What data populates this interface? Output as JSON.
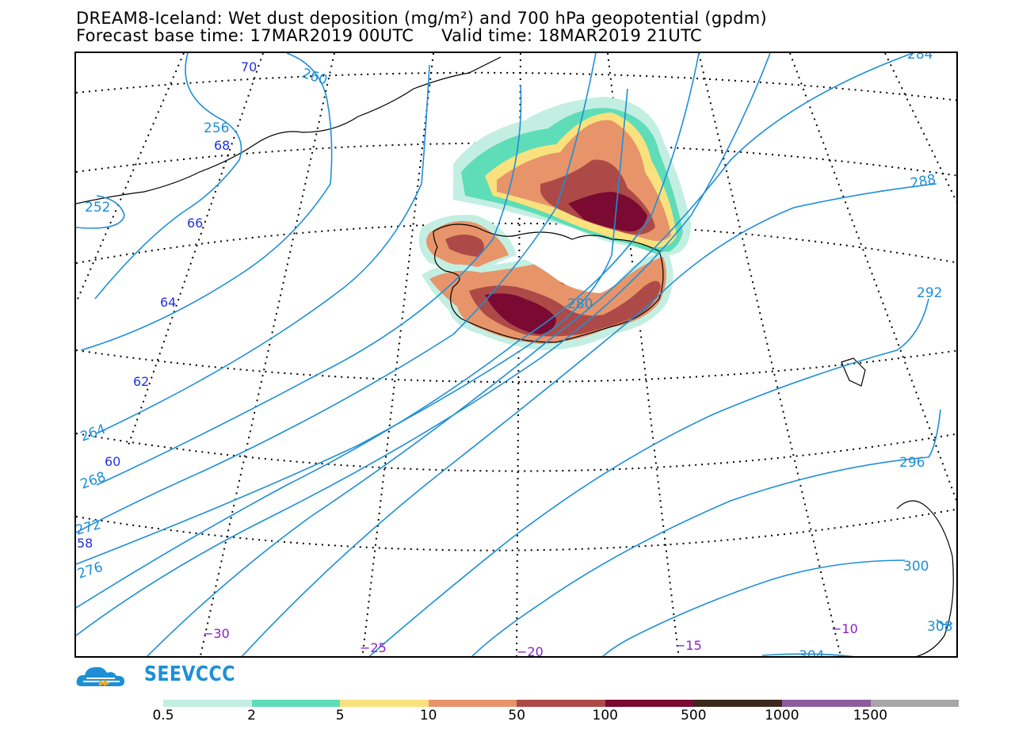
{
  "header": {
    "title_line1": "DREAM8-Iceland: Wet dust deposition (mg/m²) and 700 hPa geopotential (gpdm)",
    "title_line2": "Forecast base time: 17MAR2019 00UTC     Valid time: 18MAR2019 21UTC"
  },
  "branding": {
    "logo_text": "SEEVCCC",
    "logo_color": "#1e8fd6",
    "logo_accent": "#f5a623"
  },
  "map": {
    "contour_color": "#1e8fd6",
    "lat_label_color": "#2233dd",
    "lon_label_color": "#8a1fc8",
    "geopotential_labels": [
      "252",
      "256",
      "260",
      "264",
      "268",
      "272",
      "276",
      "280",
      "284",
      "288",
      "292",
      "296",
      "300",
      "304",
      "304",
      "308"
    ],
    "latitude_labels": [
      "70",
      "68",
      "66",
      "64",
      "62",
      "60",
      "58"
    ],
    "longitude_labels": [
      "−30",
      "−25",
      "−20",
      "−15",
      "−10"
    ]
  },
  "legend": {
    "colors": [
      "#c3efe3",
      "#5fdcb8",
      "#f9e27d",
      "#e8946a",
      "#ad4a47",
      "#7a0a32",
      "#3b2a1c",
      "#8e5b9e",
      "#a6a6a6"
    ],
    "tick_labels": [
      "0.5",
      "2",
      "5",
      "10",
      "50",
      "100",
      "500",
      "1000",
      "1500"
    ]
  }
}
